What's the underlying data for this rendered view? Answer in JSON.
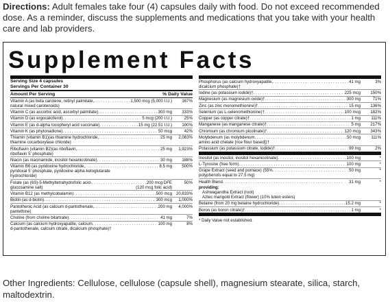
{
  "directions": {
    "label": "Directions:",
    "text": " Adult females  take four (4) capsules daily with food. Do not exceed recommended dose. As a reminder, discuss the supplements and medications that you take with your health care and lab  providers."
  },
  "facts": {
    "title": "Supplement Facts",
    "serving_size": "Serving Size 4 capsules",
    "servings_per_container": "Servings Per Container 30",
    "amount_header": "Amount Per Serving",
    "dv_header": "% Daily Value",
    "left_rows": [
      {
        "name": "Vitamin A (as beta carotene, retinyl palmitate,",
        "amount": "1,500 mcg (5,000 I.U.)",
        "dv": "167%",
        "sub": "natural mixed carotenoids)"
      },
      {
        "name": "Vitamin C (as ascorbic acid, ascorbyl palmitate)",
        "amount": "300 mg",
        "dv": "333%",
        "sub": ""
      },
      {
        "name": "Vitamin D (as ergocalciferol)",
        "amount": "5 mcg (200 I.U.)",
        "dv": "25%",
        "sub": ""
      },
      {
        "name": "Vitamin E (as d-alpha tocopheryl acid succinate)",
        "amount": "15 mg (22.51 I.U.)",
        "dv": "100%",
        "sub": ""
      },
      {
        "name": "Vitamin K (as phytonadione)",
        "amount": "50 mcg",
        "dv": "42%",
        "sub": ""
      },
      {
        "name": "Thiamin (vitamin B1)(as thiamine hydrochloride,",
        "amount": "25 mg",
        "dv": "2,083%",
        "sub": "thiamine cocarboxylase chloride)"
      },
      {
        "name": "Riboflavin (vitamin B2)(as riboflavin,",
        "amount": "25 mg",
        "dv": "1,923%",
        "sub": "riboflavin 5' phosphate)"
      },
      {
        "name": "Niacin (as niacinamide, inositol hexanicotinate)",
        "amount": "30 mg",
        "dv": "188%",
        "sub": ""
      },
      {
        "name": "Vitamin B6 (as pyridoxine hydrochloride,",
        "amount": "8.5 mg",
        "dv": "500%",
        "sub": "pyridoxal 5' phosphate, pyridoxine alpha-ketoglutarate",
        "sub2": "hydrochloride)"
      },
      {
        "name": "Folate (as (6S)-5-Methyltetrahydrofolic acid-",
        "amount": "200 mcg DFE",
        "dv": "50%",
        "sub": "glucosamine salt)",
        "sub_amount": "(120 mcg folic acid)"
      },
      {
        "name": "Vitamin B12 (as methylcobalamin)",
        "amount": "500 mcg",
        "dv": "20,833%",
        "sub": ""
      },
      {
        "name": "Biotin (as d-biotin)",
        "amount": "300 mcg",
        "dv": "1,000%",
        "sub": ""
      },
      {
        "name": "Pantothenic Acid (as calcium d-pantothenate,",
        "amount": "200 mg",
        "dv": "4,000%",
        "sub": "pantethine)"
      },
      {
        "name": "Choline (from choline bitartrate)",
        "amount": "41 mg",
        "dv": "7%",
        "sub": ""
      },
      {
        "name": "Calcium (as calcium hydroxyapatite, calcium",
        "amount": "100 mg",
        "dv": "8%",
        "sub": "d-pantothenate, calcium citrate, dicalcium phosphate)†"
      }
    ],
    "right_rows": [
      {
        "name": "Phosphorus (as calcium hydroxyapatite,",
        "amount": "41 mg",
        "dv": "3%",
        "sub": "dicalcium phosphate)†"
      },
      {
        "name": "Iodine (as potassium iodide)†",
        "amount": "225 mcg",
        "dv": "150%",
        "sub": ""
      },
      {
        "name": "Magnesium (as magnesium oxide)†",
        "amount": "300 mg",
        "dv": "71%",
        "sub": ""
      },
      {
        "name": "Zinc (as zinc monomethionine)†",
        "amount": "15 mg",
        "dv": "136%",
        "sub": ""
      },
      {
        "name": "Selenium (as L-selenomethionine)†",
        "amount": "100 mcg",
        "dv": "182%",
        "sub": ""
      },
      {
        "name": "Copper (as copper citrate)†",
        "amount": "1 mg",
        "dv": "111%",
        "sub": ""
      },
      {
        "name": "Manganese (as manganese citrate)†",
        "amount": "5 mg",
        "dv": "217%",
        "sub": ""
      },
      {
        "name": "Chromium (as chromium picolinate)†",
        "amount": "120 mcg",
        "dv": "343%",
        "sub": ""
      },
      {
        "name": "Molybdenum (as molybdenum",
        "amount": "50 mcg",
        "dv": "111%",
        "sub": "amino acid chelate [rice flour based])†"
      },
      {
        "name": "Potassium (as potassium citrate, iodide)†",
        "amount": "99 mg",
        "dv": "2%",
        "sub": ""
      }
    ],
    "other_rows": [
      {
        "name": "Inositol (as inositol, inositol hexanicotinate)",
        "amount": "100 mg",
        "dv": "*",
        "sub": ""
      },
      {
        "name": "L-Tyrosine (free form)",
        "amount": "100 mg",
        "dv": "*",
        "sub": ""
      },
      {
        "name": "Grape Extract (seed and pomace) (55%",
        "amount": "50 mg",
        "dv": "*",
        "sub": "polyphenols equal to 27.5 mg)"
      },
      {
        "name": "Health Blend",
        "amount": "31 mg",
        "dv": "*",
        "sub": ""
      }
    ],
    "providing_label": "providing:",
    "providing_items": [
      "Ashwagandha Extract (root)",
      "Aztec marigold Extract (flower) (10% lutein esters)"
    ],
    "last_rows": [
      {
        "name": "Betaine (from 20 mg betaine hydrochloride)",
        "amount": "15.2 mg",
        "dv": "*",
        "sub": ""
      },
      {
        "name": "Boron (as boron citrate)†",
        "amount": "1 mg",
        "dv": "*",
        "sub": ""
      }
    ],
    "footnote": "* Daily Value not established."
  },
  "other_ingredients": "Other Ingredients:  Cellulose, cellulose (capsule shell), magnesium stearate, silica, starch, maltodextrin."
}
